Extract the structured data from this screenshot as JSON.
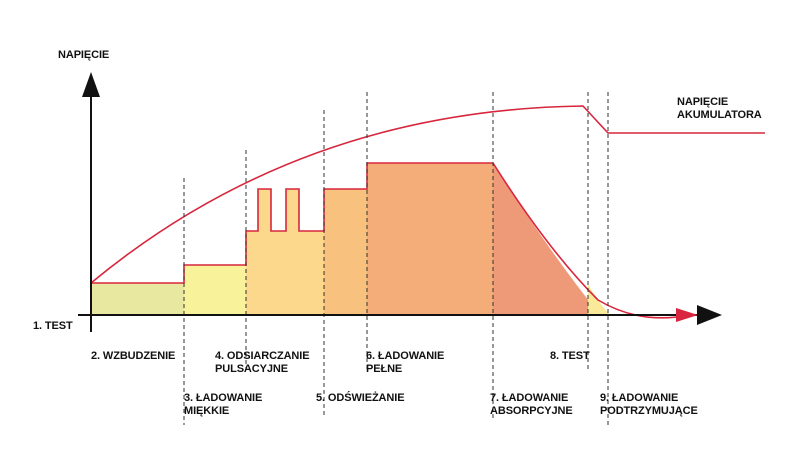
{
  "axis": {
    "y_label": "NAPIĘCIE"
  },
  "battery_label": {
    "line1": "NAPIĘCIE",
    "line2": "AKUMULATORA"
  },
  "stages": [
    {
      "id": "s1",
      "label_lines": [
        "1. TEST"
      ]
    },
    {
      "id": "s2",
      "label_lines": [
        "2. WZBUDZENIE"
      ]
    },
    {
      "id": "s3",
      "label_lines": [
        "3. ŁADOWANIE",
        "MIĘKKIE"
      ]
    },
    {
      "id": "s4",
      "label_lines": [
        "4. ODSIARCZANIE",
        "PULSACYJNE"
      ]
    },
    {
      "id": "s5",
      "label_lines": [
        "5. ODŚWIEŻANIE"
      ]
    },
    {
      "id": "s6",
      "label_lines": [
        "6. ŁADOWANIE",
        "PEŁNE"
      ]
    },
    {
      "id": "s7",
      "label_lines": [
        "7. ŁADOWANIE",
        "ABSORPCYJNE"
      ]
    },
    {
      "id": "s8",
      "label_lines": [
        "8. TEST"
      ]
    },
    {
      "id": "s9",
      "label_lines": [
        "9. ŁADOWANIE",
        "PODTRZYMUJĄCE"
      ]
    }
  ],
  "colors": {
    "curve": "#d7263d",
    "axis": "#111111",
    "divider": "#333333",
    "fill_stage2": "#e9e8a0",
    "fill_stage3": "#f8f29a",
    "fill_stage4": "#fbd88c",
    "fill_stage5": "#f8c27e",
    "fill_stage6": "#f4ad78",
    "fill_stage7": "#ee9a78",
    "fill_stage9": "#fbe99a"
  }
}
